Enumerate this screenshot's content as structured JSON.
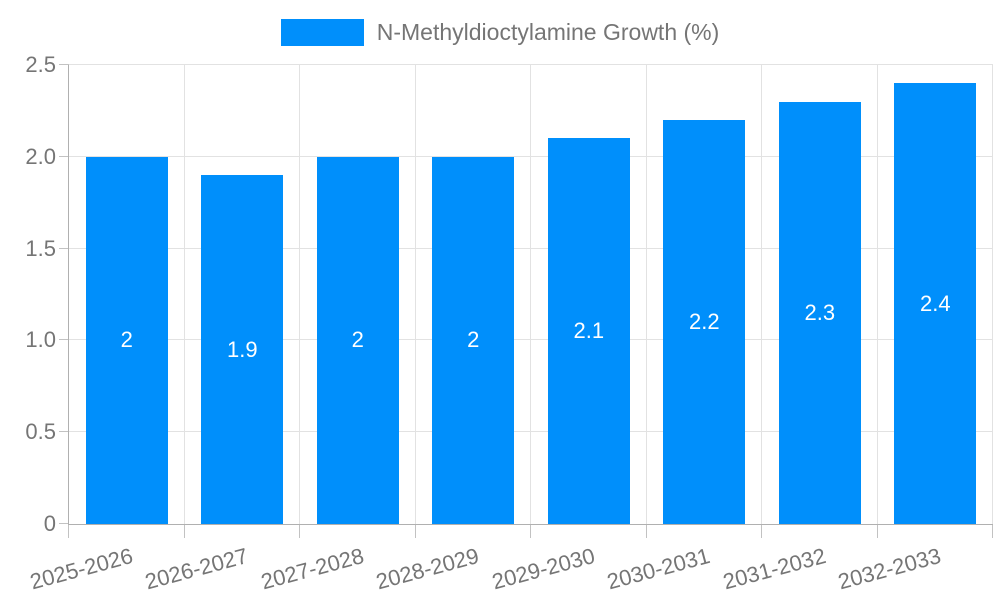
{
  "chart_data": {
    "type": "bar",
    "legend": "N-Methyldioctylamine Growth (%)",
    "categories": [
      "2025-2026",
      "2026-2027",
      "2027-2028",
      "2028-2029",
      "2029-2030",
      "2030-2031",
      "2031-2032",
      "2032-2033"
    ],
    "values": [
      2,
      1.9,
      2,
      2,
      2.1,
      2.2,
      2.3,
      2.4
    ],
    "bar_labels": [
      "2",
      "1.9",
      "2",
      "2",
      "2.1",
      "2.2",
      "2.3",
      "2.4"
    ],
    "ylim": [
      0,
      2.5
    ],
    "yticks": [
      "0",
      "0.5",
      "1.0",
      "1.5",
      "2.0",
      "2.5"
    ],
    "xlabel": "",
    "ylabel": "",
    "grid": true,
    "legend_position": "top",
    "label_rotation_deg": -15
  },
  "colors": {
    "bar": "#008FFB",
    "bar_label_text": "#ffffff",
    "axis_text": "#757575",
    "grid_line": "#e2e2e2",
    "tick_line": "#c2c2c2",
    "axis_line": "#b0b0b0",
    "background": "#ffffff"
  }
}
